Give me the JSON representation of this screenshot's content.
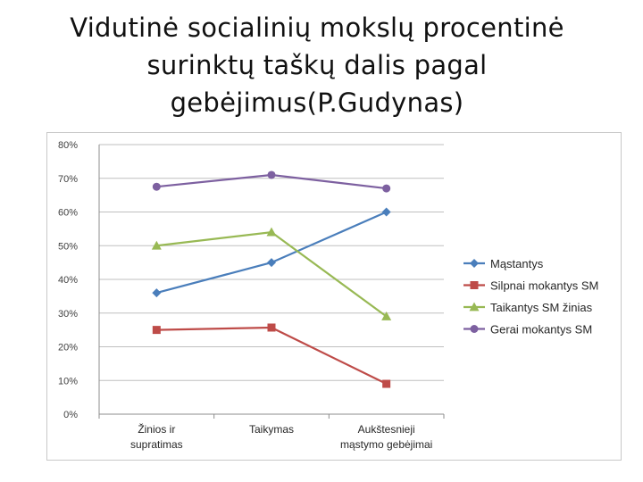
{
  "slide": {
    "title_lines": [
      "Vidutinė socialinių mokslų procentinė",
      "surinktų taškų  dalis pagal",
      "gebėjimus(P.Gudynas)"
    ]
  },
  "chart_data": {
    "type": "line",
    "title": "",
    "xlabel": "",
    "ylabel": "",
    "categories": [
      [
        "Žinios ir",
        "supratimas"
      ],
      [
        "Taikymas"
      ],
      [
        "Aukštesnieji",
        "mąstymo gebėjimai"
      ]
    ],
    "ylim": [
      0,
      80
    ],
    "y_ticks": [
      0,
      10,
      20,
      30,
      40,
      50,
      60,
      70,
      80
    ],
    "y_tick_labels": [
      "0%",
      "10%",
      "20%",
      "30%",
      "40%",
      "50%",
      "60%",
      "70%",
      "80%"
    ],
    "grid": true,
    "legend_position": "right",
    "series": [
      {
        "name": "Mąstantys",
        "values": [
          36,
          45,
          60
        ],
        "color": "#4a7ebb",
        "marker": "diamond"
      },
      {
        "name": "Silpnai mokantys SM",
        "values": [
          25,
          25.7,
          9
        ],
        "color": "#be4b48",
        "marker": "square"
      },
      {
        "name": "Taikantys SM žinias",
        "values": [
          50,
          54,
          29
        ],
        "color": "#98b954",
        "marker": "triangle"
      },
      {
        "name": "Gerai mokantys SM",
        "values": [
          67.5,
          71,
          67
        ],
        "color": "#7d60a0",
        "marker": "circle"
      }
    ]
  }
}
